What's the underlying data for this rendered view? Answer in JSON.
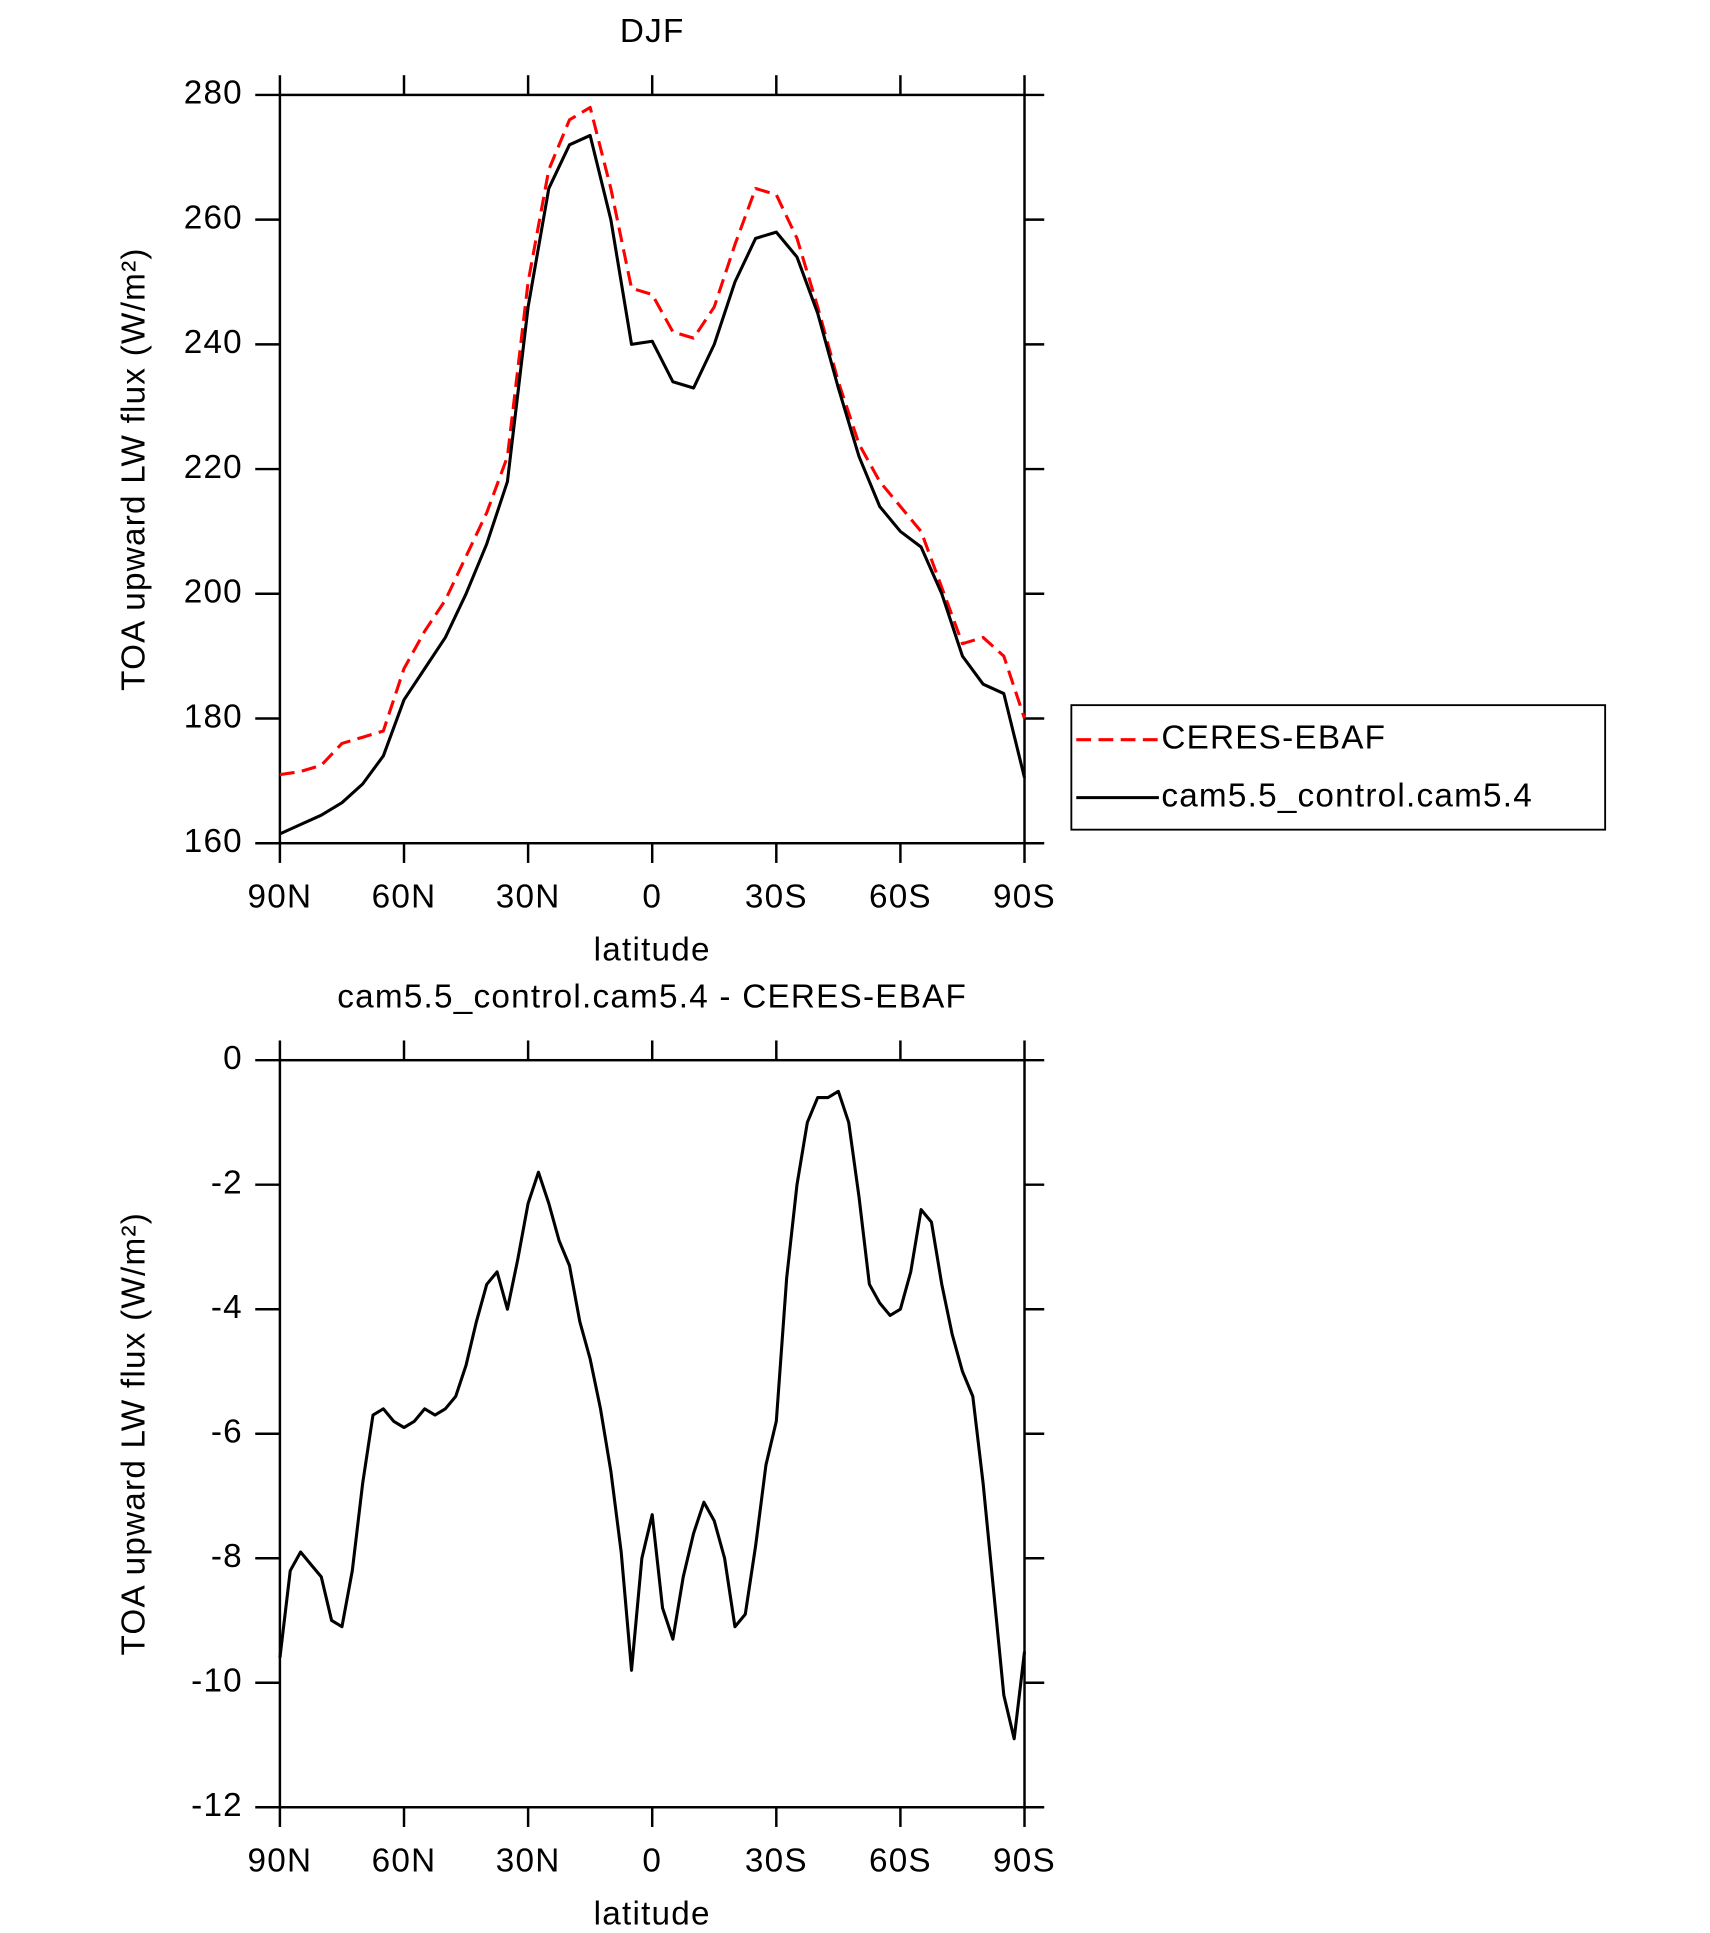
{
  "chart_data": [
    {
      "type": "line",
      "title": "DJF",
      "xlabel": "latitude",
      "ylabel": "TOA upward LW flux (W/m²)",
      "x": [
        90,
        85,
        80,
        75,
        70,
        65,
        60,
        55,
        50,
        45,
        40,
        35,
        30,
        25,
        20,
        15,
        10,
        5,
        0,
        -5,
        -10,
        -15,
        -20,
        -25,
        -30,
        -35,
        -40,
        -45,
        -50,
        -55,
        -60,
        -65,
        -70,
        -75,
        -80,
        -85,
        -90
      ],
      "series": [
        {
          "name": "CERES-EBAF",
          "color": "#ff0000",
          "dashed": true,
          "values": [
            171,
            171.5,
            172.5,
            176,
            177,
            178,
            188,
            194,
            199,
            206,
            213,
            222,
            250,
            268,
            276,
            278,
            265,
            249,
            248,
            242,
            241,
            246,
            256,
            265,
            264,
            257,
            246,
            234,
            224,
            218,
            214,
            210,
            201,
            192,
            193,
            190,
            180
          ]
        },
        {
          "name": "cam5.5_control.cam5.4",
          "color": "#000000",
          "dashed": false,
          "values": [
            161.5,
            163,
            164.5,
            166.5,
            169.5,
            174,
            183,
            188,
            193,
            200,
            208,
            218,
            246,
            265,
            272,
            273.5,
            260,
            240,
            240.5,
            234,
            233,
            240,
            250,
            257,
            258,
            254,
            245,
            233,
            222,
            214,
            210,
            207.5,
            200,
            190,
            185.5,
            184,
            170.5
          ]
        }
      ],
      "xlim": [
        90,
        -90
      ],
      "xticks": [
        {
          "value": 90,
          "label": "90N"
        },
        {
          "value": 60,
          "label": "60N"
        },
        {
          "value": 30,
          "label": "30N"
        },
        0,
        {
          "value": -30,
          "label": "30S"
        },
        {
          "value": -60,
          "label": "60S"
        },
        {
          "value": -90,
          "label": "90S"
        }
      ],
      "ylim": [
        160,
        280
      ],
      "yticks": [
        160,
        180,
        200,
        220,
        240,
        260,
        280
      ],
      "legend": "right"
    },
    {
      "type": "line",
      "title": "cam5.5_control.cam5.4 - CERES-EBAF",
      "xlabel": "latitude",
      "ylabel": "TOA upward LW flux (W/m²)",
      "x": [
        90,
        87.5,
        85,
        82.5,
        80,
        77.5,
        75,
        72.5,
        70,
        67.5,
        65,
        62.5,
        60,
        57.5,
        55,
        52.5,
        50,
        47.5,
        45,
        42.5,
        40,
        37.5,
        35,
        32.5,
        30,
        27.5,
        25,
        22.5,
        20,
        17.5,
        15,
        12.5,
        10,
        7.5,
        5,
        2.5,
        0,
        -2.5,
        -5,
        -7.5,
        -10,
        -12.5,
        -15,
        -17.5,
        -20,
        -22.5,
        -25,
        -27.5,
        -30,
        -32.5,
        -35,
        -37.5,
        -40,
        -42.5,
        -45,
        -47.5,
        -50,
        -52.5,
        -55,
        -57.5,
        -60,
        -62.5,
        -65,
        -67.5,
        -70,
        -72.5,
        -75,
        -77.5,
        -80,
        -82.5,
        -85,
        -87.5,
        -90
      ],
      "series": [
        {
          "name": "cam5.5_control.cam5.4",
          "color": "#000000",
          "dashed": false,
          "values": [
            -9.6,
            -8.2,
            -7.9,
            -8.1,
            -8.3,
            -9.0,
            -9.1,
            -8.2,
            -6.8,
            -5.7,
            -5.6,
            -5.8,
            -5.9,
            -5.8,
            -5.6,
            -5.7,
            -5.6,
            -5.4,
            -4.9,
            -4.2,
            -3.6,
            -3.4,
            -4.0,
            -3.2,
            -2.3,
            -1.8,
            -2.3,
            -2.9,
            -3.3,
            -4.2,
            -4.8,
            -5.6,
            -6.6,
            -7.9,
            -9.8,
            -8.0,
            -7.3,
            -8.8,
            -9.3,
            -8.3,
            -7.6,
            -7.1,
            -7.4,
            -8.0,
            -9.1,
            -8.9,
            -7.8,
            -6.5,
            -5.8,
            -3.5,
            -2.0,
            -1.0,
            -0.6,
            -0.6,
            -0.5,
            -1.0,
            -2.2,
            -3.6,
            -3.9,
            -4.1,
            -4.0,
            -3.4,
            -2.4,
            -2.6,
            -3.6,
            -4.4,
            -5.0,
            -5.4,
            -6.8,
            -8.5,
            -10.2,
            -10.9,
            -9.5
          ]
        }
      ],
      "xlim": [
        90,
        -90
      ],
      "xticks": [
        {
          "value": 90,
          "label": "90N"
        },
        {
          "value": 60,
          "label": "60N"
        },
        {
          "value": 30,
          "label": "30N"
        },
        0,
        {
          "value": -30,
          "label": "30S"
        },
        {
          "value": -60,
          "label": "60S"
        },
        {
          "value": -90,
          "label": "90S"
        }
      ],
      "ylim": [
        -12,
        0
      ],
      "yticks": [
        -12,
        -10,
        -8,
        -6,
        -4,
        -2,
        0
      ]
    }
  ]
}
